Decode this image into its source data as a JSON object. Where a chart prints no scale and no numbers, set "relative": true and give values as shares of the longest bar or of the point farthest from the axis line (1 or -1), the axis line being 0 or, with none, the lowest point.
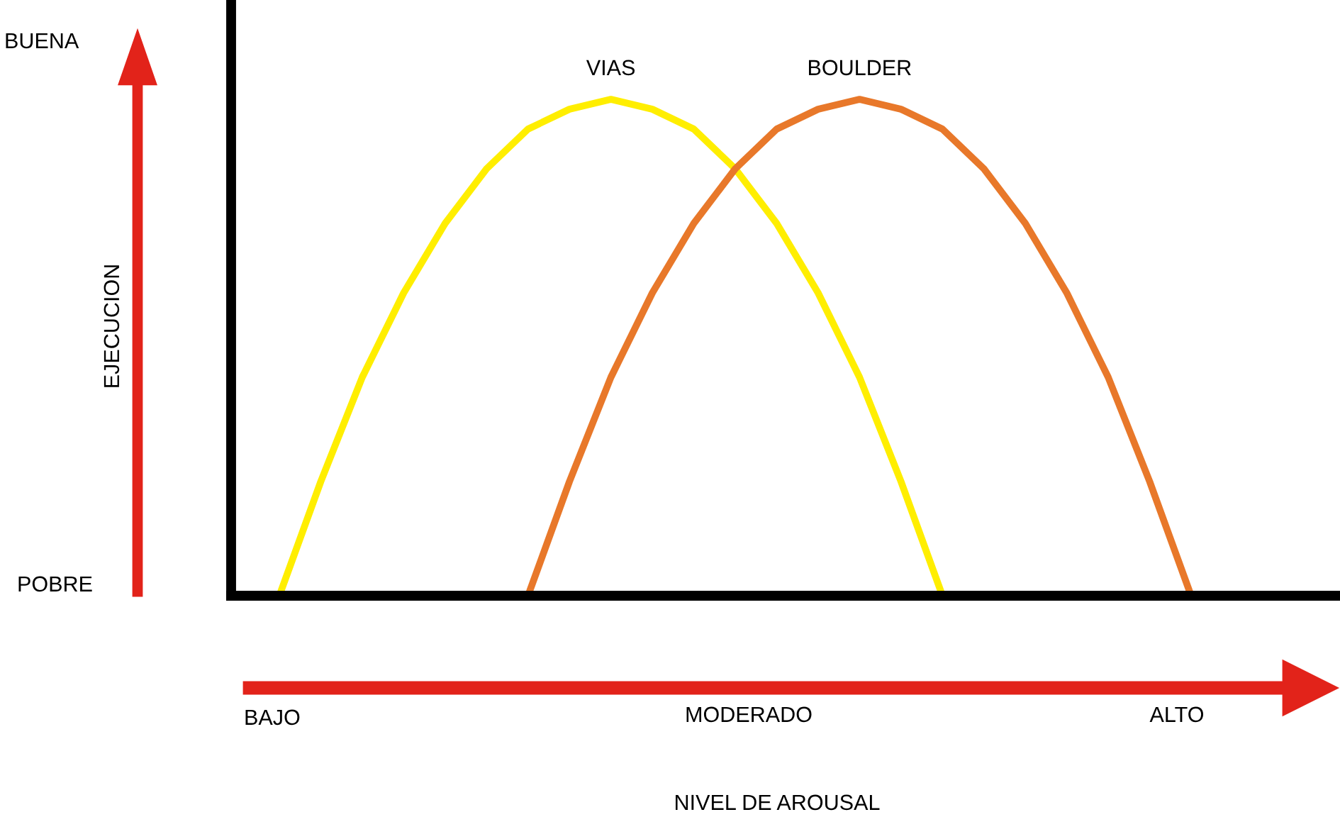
{
  "chart_data": {
    "type": "line",
    "relative": true,
    "annotations": [
      "BUENA",
      "POBRE",
      "BAJO",
      "MODERADO",
      "ALTO",
      "NIVEL DE AROUSAL",
      "EJECUCION"
    ],
    "categories": [
      null,
      null,
      null,
      null,
      null,
      null,
      null,
      null,
      null,
      null,
      null,
      null,
      null,
      null,
      null,
      null,
      null,
      null,
      null,
      null,
      null,
      null,
      null
    ],
    "grid": false,
    "legend": false,
    "marker": "none",
    "line_style": "solid",
    "series": [
      {
        "name": "VIAS",
        "color": "#ffee00",
        "values": [
          0,
          0.23,
          0.44,
          0.61,
          0.75,
          0.86,
          0.94,
          0.98,
          1,
          0.98,
          0.94,
          0.86,
          0.75,
          0.61,
          0.44,
          0.23,
          0,
          null,
          null,
          null,
          null,
          null,
          null
        ]
      },
      {
        "name": "BOULDER",
        "color": "#e8782a",
        "values": [
          null,
          null,
          null,
          null,
          null,
          null,
          0,
          0.23,
          0.44,
          0.61,
          0.75,
          0.86,
          0.94,
          0.98,
          1,
          0.98,
          0.94,
          0.86,
          0.75,
          0.61,
          0.44,
          0.23,
          0
        ]
      }
    ]
  }
}
